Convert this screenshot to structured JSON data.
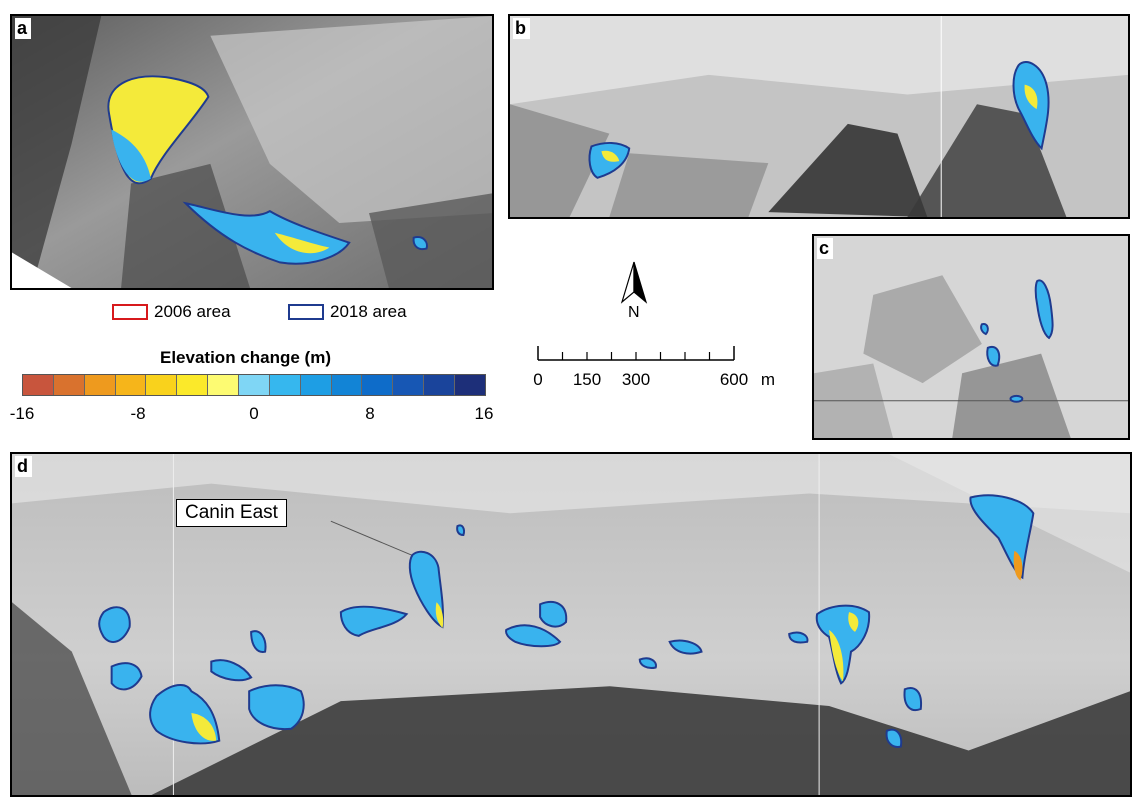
{
  "panels": {
    "a": {
      "label": "a"
    },
    "b": {
      "label": "b"
    },
    "c": {
      "label": "c"
    },
    "d": {
      "label": "d",
      "callout": "Canin East"
    }
  },
  "legend": {
    "area_2006": {
      "label": "2006 area",
      "color": "#d7191c"
    },
    "area_2018": {
      "label": "2018 area",
      "color": "#1f3b8f"
    }
  },
  "colorbar": {
    "title": "Elevation change (m)",
    "ticks": [
      "-16",
      "-8",
      "0",
      "8",
      "16"
    ],
    "colors": [
      "#c8553d",
      "#d9722e",
      "#ee9a1e",
      "#f6b51a",
      "#f9d21c",
      "#fbe92a",
      "#fdfb72",
      "#7fd6f5",
      "#36b7ee",
      "#1e9ee4",
      "#1284d6",
      "#0e6cc9",
      "#1757b4",
      "#1a449b",
      "#1d2f79"
    ]
  },
  "north_arrow": {
    "label": "N"
  },
  "scale_bar": {
    "ticks": [
      "0",
      "150",
      "300",
      "600"
    ],
    "unit": "m"
  }
}
